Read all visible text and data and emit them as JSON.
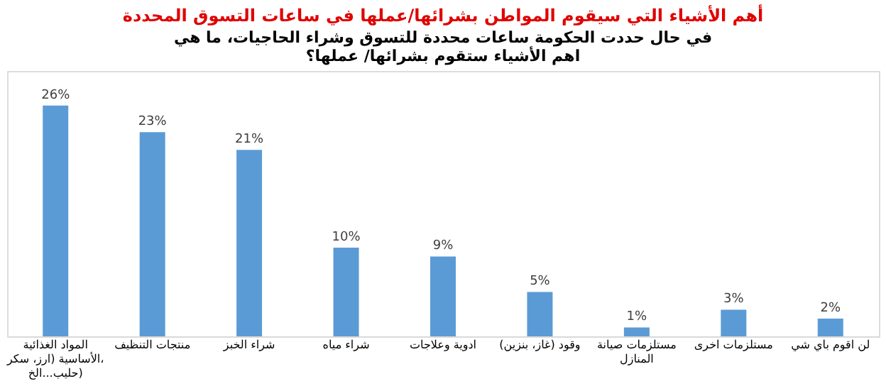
{
  "chart_data": {
    "type": "bar",
    "title": "أهم الأشياء التي سيقوم المواطن بشرائها/عملها في ساعات التسوق المحددة",
    "subtitle": "في حال حددت الحكومة ساعات محددة للتسوق وشراء الحاجيات، ما هي اهم الأشياء ستقوم بشرائها/ عملها؟",
    "categories": [
      "المواد الغذائية الأساسية (ارز، سكر، حليب...الخ)",
      "منتجات التنظيف",
      "شراء الخبز",
      "شراء مياه",
      "ادوية وعلاجات",
      "وقود (غاز، بنزين)",
      "مستلزمات صيانة المنازل",
      "مستلزمات اخرى",
      "لن اقوم باي شي"
    ],
    "values": [
      26,
      23,
      21,
      10,
      9,
      5,
      1,
      3,
      2
    ],
    "value_labels": [
      "26%",
      "23%",
      "21%",
      "10%",
      "9%",
      "5%",
      "1%",
      "3%",
      "2%"
    ],
    "color": "#5b9bd5"
  }
}
